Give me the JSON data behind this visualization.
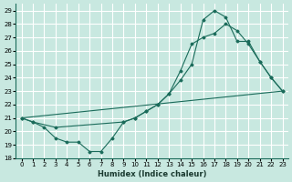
{
  "title": "",
  "xlabel": "Humidex (Indice chaleur)",
  "ylabel": "",
  "xlim": [
    -0.5,
    23.5
  ],
  "ylim": [
    18,
    29.5
  ],
  "yticks": [
    18,
    19,
    20,
    21,
    22,
    23,
    24,
    25,
    26,
    27,
    28,
    29
  ],
  "xticks": [
    0,
    1,
    2,
    3,
    4,
    5,
    6,
    7,
    8,
    9,
    10,
    11,
    12,
    13,
    14,
    15,
    16,
    17,
    18,
    19,
    20,
    21,
    22,
    23
  ],
  "background_color": "#c8e8e0",
  "grid_color": "#ffffff",
  "line_color": "#1a6b5a",
  "line1_x": [
    0,
    1,
    2,
    3,
    4,
    5,
    6,
    7,
    8,
    9,
    10,
    11,
    12,
    13,
    14,
    15,
    16,
    17,
    18,
    19,
    20,
    21,
    22,
    23
  ],
  "line1_y": [
    21.0,
    20.7,
    20.3,
    19.5,
    19.2,
    19.2,
    18.5,
    18.5,
    19.5,
    20.7,
    21.0,
    21.5,
    22.0,
    22.8,
    24.5,
    26.5,
    27.0,
    27.3,
    28.0,
    27.5,
    26.5,
    25.2,
    24.0,
    23.0
  ],
  "line2_x": [
    0,
    1,
    3,
    9,
    10,
    11,
    12,
    13,
    14,
    15,
    16,
    17,
    18,
    19,
    20,
    21,
    22,
    23
  ],
  "line2_y": [
    21.0,
    20.7,
    20.3,
    20.7,
    21.0,
    21.5,
    22.0,
    22.8,
    23.8,
    25.0,
    28.3,
    29.0,
    28.5,
    26.7,
    26.7,
    25.2,
    24.0,
    23.0
  ],
  "line3_x": [
    0,
    23
  ],
  "line3_y": [
    21.0,
    23.0
  ]
}
